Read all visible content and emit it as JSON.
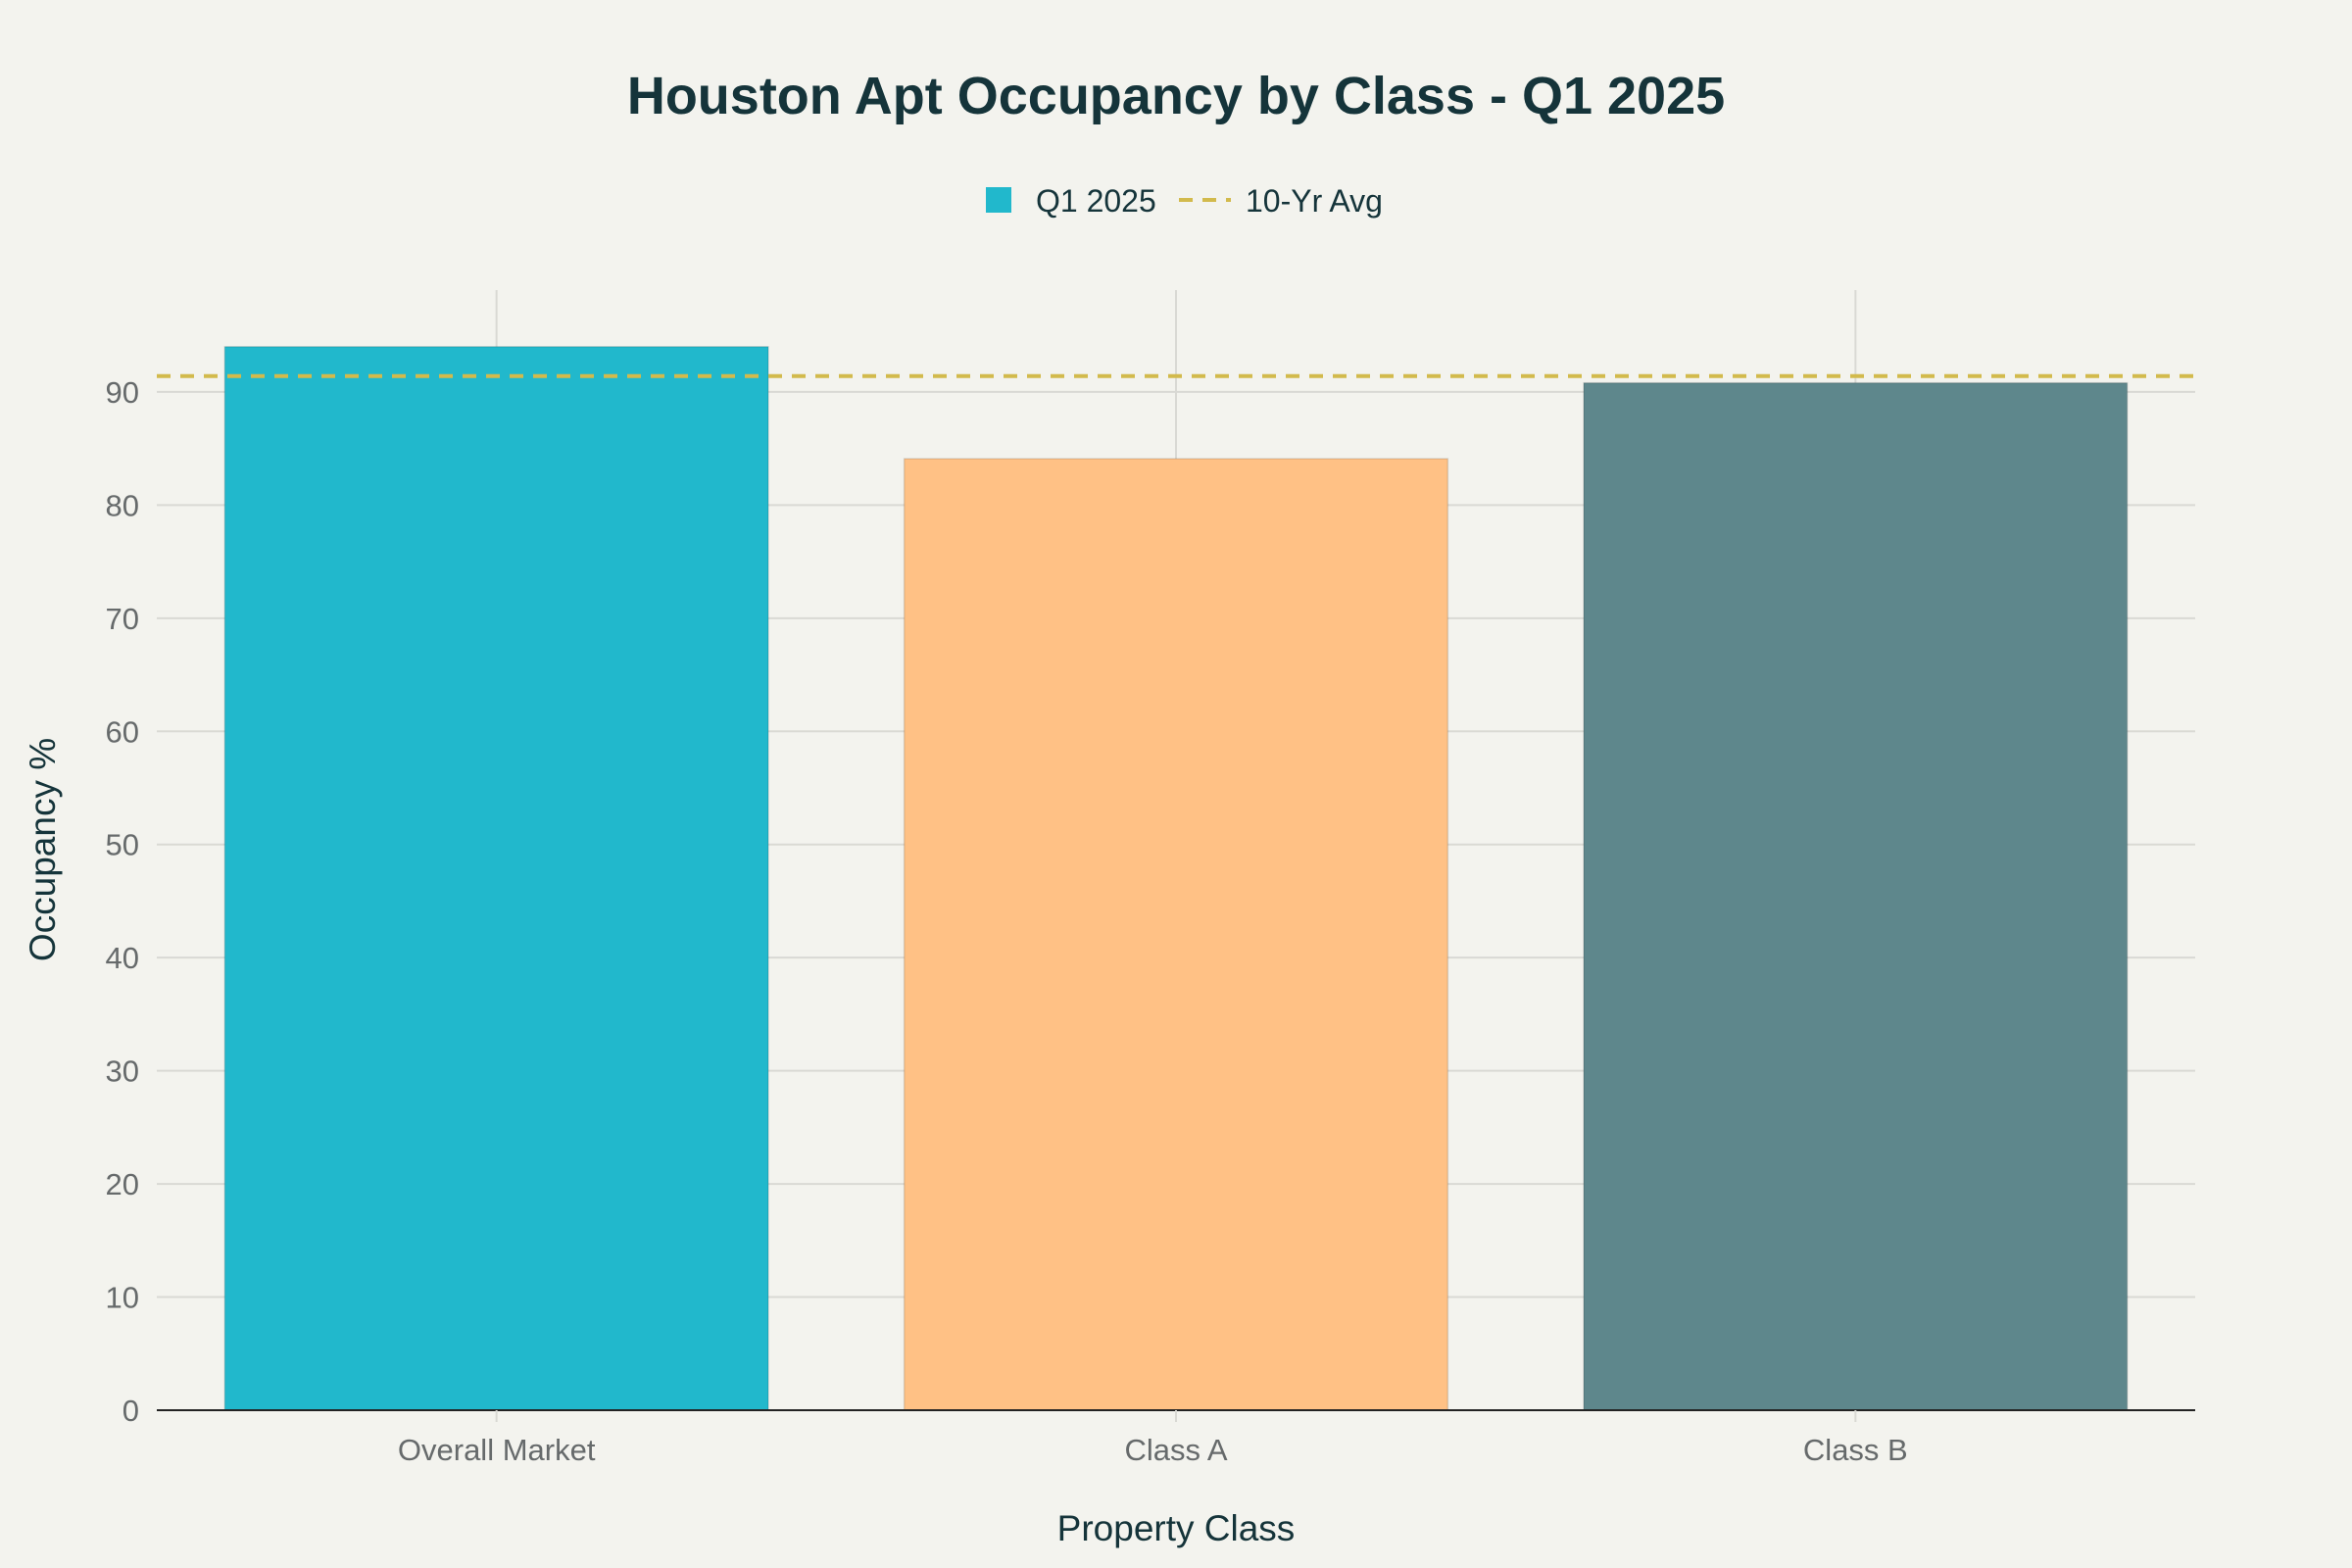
{
  "chart_data": {
    "type": "bar",
    "title": "Houston Apt Occupancy by Class - Q1 2025",
    "xlabel": "Property Class",
    "ylabel": "Occupancy %",
    "categories": [
      "Overall Market",
      "Class A",
      "Class B"
    ],
    "series": [
      {
        "name": "Q1 2025",
        "values": [
          94.0,
          84.1,
          90.8
        ],
        "colors": [
          "#21b8cc",
          "#ffc185",
          "#5e878c"
        ]
      }
    ],
    "reference_lines": [
      {
        "name": "10-Yr Avg",
        "value": 91.4,
        "style": "dashed",
        "color": "#d2ba4c"
      }
    ],
    "ylim": [
      0,
      99
    ],
    "yticks": [
      0,
      10,
      20,
      30,
      40,
      50,
      60,
      70,
      80,
      90
    ],
    "grid": true,
    "legend": {
      "placement": "top-center"
    }
  }
}
